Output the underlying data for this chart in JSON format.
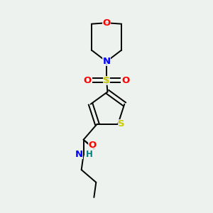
{
  "bg_color": "#eef2ee",
  "colors": {
    "S": "#cccc00",
    "O": "#ff0000",
    "N": "#0000ff",
    "H": "#008080",
    "C": "#000000",
    "bond": "#000000"
  },
  "lw": 1.4,
  "fs": 9.5
}
